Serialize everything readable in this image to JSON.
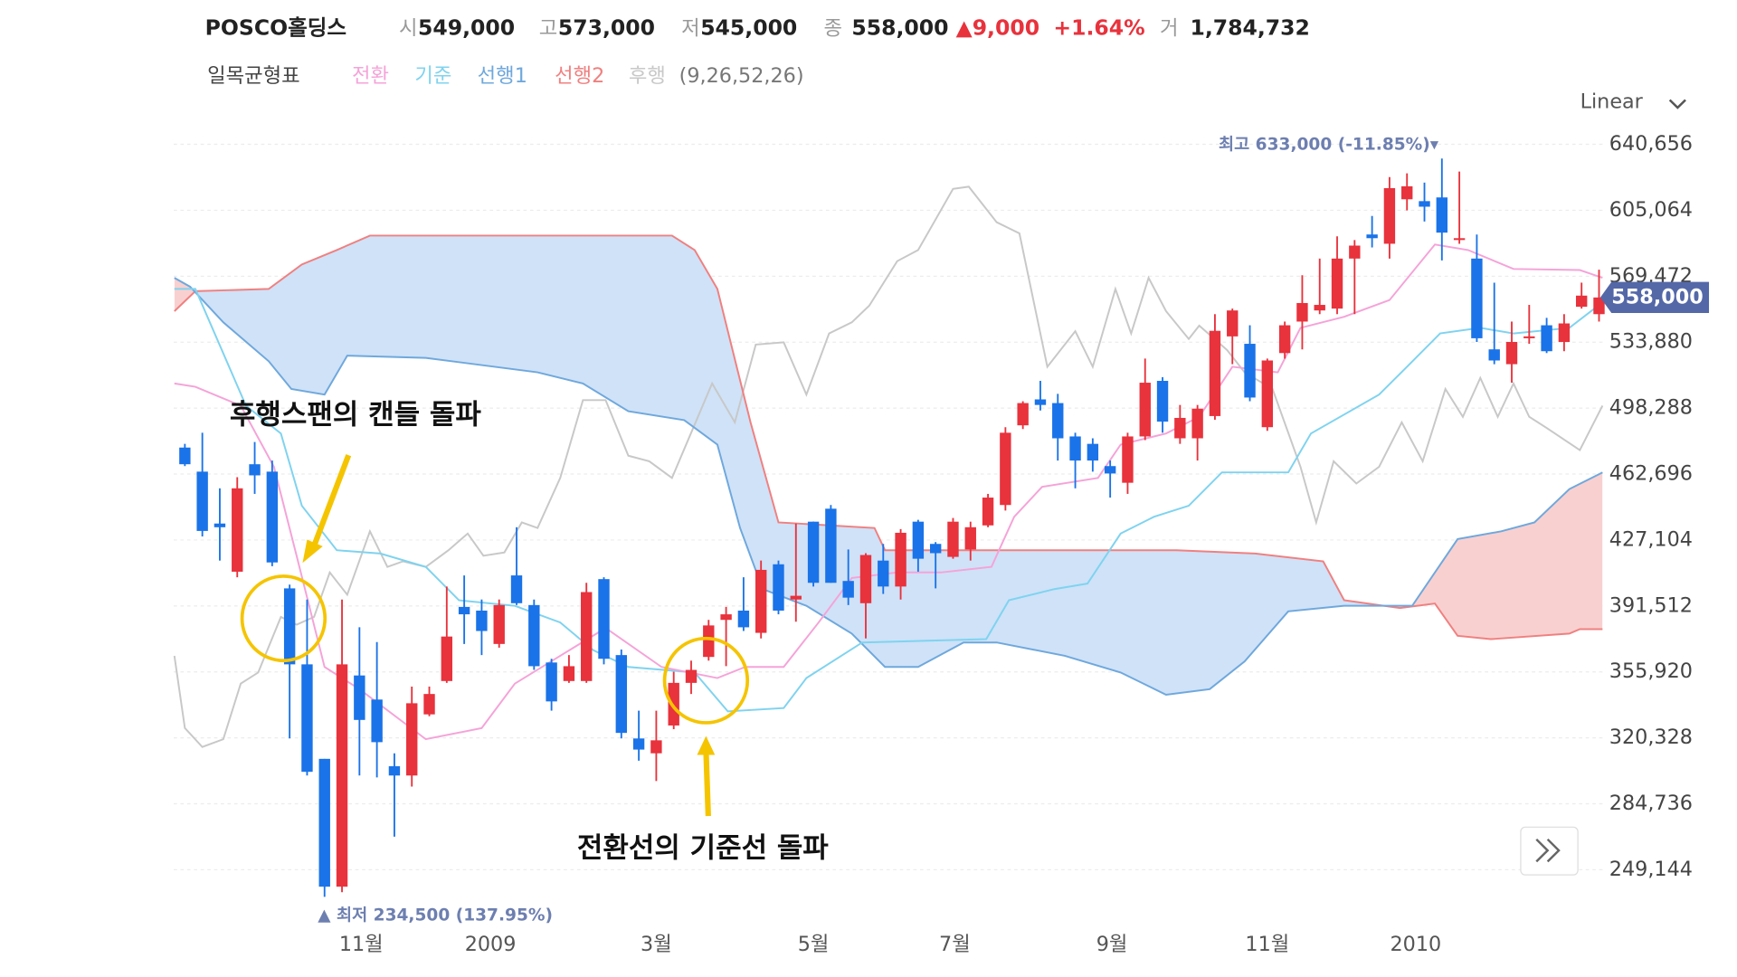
{
  "header": {
    "name": "POSCO홀딩스",
    "open_label": "시",
    "open": "549,000",
    "high_label": "고",
    "high": "573,000",
    "low_label": "저",
    "low": "545,000",
    "close_label": "종",
    "close": "558,000",
    "change": "▲9,000",
    "change_pct": "+1.64%",
    "volume_label": "거",
    "volume": "1,784,732"
  },
  "indicator": {
    "title": "일목균형표",
    "params": "(9,26,52,26)"
  },
  "scale_mode": "Linear",
  "chart_data": {
    "type": "candlestick",
    "xlim": [
      -0.64,
      81.2
    ],
    "ylim": [
      227208,
      652640
    ],
    "grid": true,
    "xticks": [
      {
        "value": 10.1,
        "label": "11월"
      },
      {
        "value": 17.5,
        "label": "2009"
      },
      {
        "value": 27.0,
        "label": "3월"
      },
      {
        "value": 36.0,
        "label": "5월"
      },
      {
        "value": 44.1,
        "label": "7월"
      },
      {
        "value": 53.1,
        "label": "9월"
      },
      {
        "value": 62.0,
        "label": "11월"
      },
      {
        "value": 70.5,
        "label": "2010"
      }
    ],
    "yticks": [
      {
        "value": 640656,
        "label": "640,656"
      },
      {
        "value": 605064,
        "label": "605,064"
      },
      {
        "value": 569472,
        "label": "569,472"
      },
      {
        "value": 533880,
        "label": "533,880"
      },
      {
        "value": 498288,
        "label": "498,288"
      },
      {
        "value": 462696,
        "label": "462,696"
      },
      {
        "value": 427104,
        "label": "427,104"
      },
      {
        "value": 391512,
        "label": "391,512"
      },
      {
        "value": 355920,
        "label": "355,920"
      },
      {
        "value": 320328,
        "label": "320,328"
      },
      {
        "value": 284736,
        "label": "284,736"
      },
      {
        "value": 249144,
        "label": "249,144"
      }
    ],
    "candles": {
      "up_color": "#e8323c",
      "down_color": "#1a73e8",
      "open": [
        477000,
        464000,
        436000,
        410000,
        468000,
        464000,
        401000,
        360000,
        309000,
        240000,
        354000,
        341000,
        305000,
        300000,
        333000,
        351000,
        391000,
        389000,
        371000,
        408000,
        392000,
        361000,
        351000,
        351000,
        406000,
        365000,
        320000,
        312000,
        327000,
        350000,
        364000,
        384000,
        389000,
        377000,
        414000,
        395000,
        437000,
        444000,
        405000,
        393000,
        416000,
        402000,
        437000,
        425000,
        418000,
        422000,
        435000,
        446000,
        489000,
        503000,
        501000,
        483000,
        479000,
        467000,
        458000,
        483000,
        513000,
        482000,
        482000,
        494000,
        537000,
        533000,
        488000,
        528000,
        545000,
        551000,
        552000,
        579000,
        592000,
        587000,
        611000,
        610000,
        612000,
        589000,
        579000,
        530000,
        522000,
        536000,
        543000,
        534000,
        553000,
        549000
      ],
      "high": [
        479000,
        485000,
        455000,
        461000,
        480000,
        470000,
        403000,
        395000,
        309000,
        395000,
        380000,
        372000,
        312000,
        348000,
        348000,
        402000,
        408000,
        395000,
        395000,
        434000,
        395000,
        363000,
        365000,
        404000,
        407000,
        368000,
        335000,
        335000,
        356000,
        362000,
        384000,
        391000,
        407000,
        416000,
        416000,
        436000,
        437000,
        446000,
        422000,
        420000,
        425000,
        433000,
        438000,
        426000,
        439000,
        437000,
        452000,
        488000,
        502000,
        513000,
        506000,
        485000,
        482000,
        470000,
        485000,
        525000,
        515000,
        500000,
        500000,
        549000,
        552000,
        543000,
        525000,
        545000,
        570000,
        579000,
        591000,
        589000,
        602000,
        623000,
        625000,
        620000,
        633000,
        626000,
        592000,
        566000,
        545000,
        554000,
        547000,
        549000,
        566000,
        573000
      ],
      "low": [
        467000,
        429000,
        416000,
        407000,
        452000,
        413000,
        320000,
        300000,
        234500,
        237000,
        300000,
        299000,
        267000,
        294000,
        332000,
        350000,
        371000,
        365000,
        369000,
        392000,
        357000,
        335000,
        350000,
        350000,
        360000,
        320000,
        308000,
        297000,
        325000,
        344000,
        362000,
        359000,
        378000,
        374000,
        387000,
        383000,
        402000,
        404000,
        392000,
        374000,
        398000,
        395000,
        410000,
        401000,
        417000,
        416000,
        434000,
        443000,
        487000,
        497000,
        470000,
        455000,
        464000,
        450000,
        452000,
        481000,
        485000,
        479000,
        470000,
        492000,
        522000,
        502000,
        486000,
        525000,
        530000,
        549000,
        549000,
        549000,
        585000,
        579000,
        605000,
        599000,
        578000,
        587000,
        534000,
        522000,
        512000,
        533000,
        528000,
        529000,
        552000,
        545000
      ],
      "close": [
        468000,
        432000,
        434000,
        455000,
        462000,
        415000,
        360000,
        302000,
        240000,
        360000,
        330000,
        318000,
        300000,
        339000,
        344000,
        375000,
        387000,
        378000,
        392000,
        393000,
        359000,
        340000,
        359000,
        399000,
        363000,
        323000,
        314000,
        319000,
        350000,
        357000,
        381000,
        387000,
        380000,
        411000,
        389000,
        397000,
        404000,
        404000,
        396000,
        419000,
        402000,
        431000,
        417000,
        420000,
        437000,
        434000,
        450000,
        485000,
        501000,
        500000,
        482000,
        470000,
        470000,
        463000,
        483000,
        512000,
        491000,
        493000,
        498000,
        540000,
        551000,
        504000,
        524000,
        543000,
        555000,
        554000,
        579000,
        586000,
        590000,
        617000,
        618000,
        607000,
        593000,
        590000,
        536000,
        524000,
        534000,
        537000,
        529000,
        544000,
        559000,
        558000
      ]
    },
    "series": [
      {
        "name": "전환",
        "color": "#f5a3d8",
        "x": [
          -0.6,
          0.6,
          3.2,
          5.1,
          6.4,
          8.0,
          10.0,
          13.8,
          17.0,
          18.9,
          21.5,
          24.1,
          27.3,
          30.5,
          32.1,
          34.3,
          36.3,
          38.2,
          40.8,
          43.3,
          46.2,
          47.5,
          49.1,
          52.3,
          53.6,
          56.2,
          58.1,
          60.0,
          62.6,
          63.9,
          66.4,
          69.0,
          71.6,
          73.5,
          76.1,
          79.9,
          81.2
        ],
        "values": [
          511600,
          509800,
          499600,
          466600,
          418600,
          358600,
          346600,
          319600,
          325600,
          349600,
          364600,
          379600,
          358600,
          352600,
          358600,
          358600,
          382600,
          406600,
          409600,
          409600,
          412600,
          439600,
          455800,
          460600,
          478600,
          484600,
          493600,
          520600,
          517600,
          541600,
          547600,
          556600,
          586600,
          583600,
          573400,
          572800,
          568600
        ]
      },
      {
        "name": "기준",
        "color": "#7fd3ef",
        "x": [
          -0.6,
          0.6,
          3.5,
          5.5,
          6.7,
          8.7,
          11.2,
          13.8,
          15.7,
          18.9,
          21.5,
          23.4,
          25.4,
          29.2,
          31.1,
          34.3,
          35.6,
          37.6,
          38.8,
          45.9,
          47.2,
          49.8,
          51.7,
          53.6,
          55.5,
          57.5,
          59.4,
          63.2,
          64.5,
          68.4,
          70.0,
          71.9,
          74.2,
          76.1,
          79.3,
          81.2
        ],
        "values": [
          562600,
          562600,
          499600,
          484600,
          445600,
          421600,
          419800,
          412600,
          394600,
          391600,
          382600,
          367600,
          358600,
          355600,
          334600,
          336400,
          352600,
          364600,
          371800,
          373600,
          394600,
          400600,
          403600,
          430600,
          439600,
          445600,
          463600,
          463600,
          484600,
          505600,
          520600,
          538600,
          541600,
          538600,
          541600,
          555400
        ]
      },
      {
        "name": "선행1",
        "color": "#6fa8dc",
        "x": [
          -0.6,
          0.3,
          2.2,
          4.8,
          6.1,
          8.0,
          9.3,
          13.8,
          20.2,
          22.8,
          25.4,
          28.6,
          30.5,
          31.8,
          33.1,
          35.6,
          38.2,
          40.1,
          42.0,
          44.6,
          46.5,
          50.4,
          53.6,
          56.2,
          58.7,
          60.7,
          63.2,
          66.4,
          70.3,
          72.9,
          75.4,
          77.3,
          79.3,
          81.2
        ],
        "values": [
          568600,
          563800,
          544600,
          523600,
          508600,
          505600,
          526600,
          525400,
          517600,
          511600,
          496600,
          491800,
          478600,
          433600,
          400600,
          391600,
          376600,
          358600,
          358600,
          371800,
          371800,
          364600,
          355600,
          343600,
          346600,
          361600,
          388600,
          391600,
          391600,
          427600,
          431800,
          436600,
          454600,
          463600
        ]
      },
      {
        "name": "선행2",
        "color": "#f08080",
        "x": [
          -0.6,
          0.6,
          4.8,
          6.7,
          8.7,
          10.6,
          27.9,
          29.2,
          30.5,
          32.4,
          34.0,
          39.5,
          40.1,
          56.8,
          61.3,
          65.2,
          66.4,
          69.6,
          71.6,
          72.9,
          74.8,
          79.3,
          79.9,
          81.2
        ],
        "values": [
          550600,
          561400,
          562600,
          575800,
          583600,
          591400,
          591400,
          583600,
          562600,
          490600,
          436600,
          433600,
          421600,
          421600,
          419800,
          415600,
          394600,
          390400,
          392800,
          375400,
          373600,
          376600,
          379000,
          379000
        ]
      },
      {
        "name": "후행",
        "color": "#c8c8c8",
        "x": [
          -0.6,
          0,
          1.0,
          2.2,
          3.2,
          4.2,
          5.5,
          6.4,
          7.4,
          8.3,
          9.3,
          10.6,
          11.6,
          12.5,
          13.8,
          15.1,
          16.2,
          17.1,
          18.3,
          19.3,
          20.2,
          21.5,
          22.8,
          24.1,
          25.4,
          26.6,
          27.9,
          30.2,
          31.5,
          32.7,
          34.3,
          35.6,
          36.9,
          38.2,
          39.2,
          40.8,
          42.0,
          44.0,
          44.9,
          46.5,
          47.8,
          49.4,
          51.0,
          52.0,
          53.3,
          54.2,
          55.2,
          56.2,
          57.5,
          58.1,
          59.7,
          60.7,
          62.3,
          63.9,
          64.8,
          65.8,
          67.1,
          68.4,
          69.7,
          70.9,
          72.2,
          73.2,
          74.2,
          75.2,
          76.1,
          77.0,
          78.0,
          79.9,
          81.2
        ],
        "values": [
          364600,
          325600,
          315400,
          319600,
          349600,
          355600,
          385600,
          381400,
          385600,
          409600,
          397600,
          431800,
          412600,
          415600,
          412600,
          421600,
          430600,
          418600,
          420400,
          436600,
          433600,
          460600,
          502600,
          502600,
          472600,
          469600,
          460600,
          511600,
          490600,
          532600,
          533800,
          505600,
          538600,
          544600,
          553600,
          577600,
          583600,
          616600,
          617800,
          598600,
          592600,
          520600,
          539800,
          520600,
          562600,
          538600,
          568600,
          550600,
          535600,
          542800,
          529600,
          517600,
          508600,
          466600,
          436600,
          469600,
          457600,
          466600,
          490600,
          469600,
          508600,
          493600,
          514600,
          493600,
          511600,
          493600,
          487600,
          475600,
          499600
        ]
      }
    ],
    "cloud_colors": {
      "span2_above": "#cfe2f8",
      "span1_above": "#f9d0d0"
    },
    "price_label": "558,000",
    "annotations": {
      "high": "최고 633,000 (-11.85%)▾",
      "low": "▲ 최저 234,500 (137.95%)",
      "callout1": "후행스팬의 캔들 돌파",
      "callout2": "전환선의 기준선 돌파"
    }
  }
}
